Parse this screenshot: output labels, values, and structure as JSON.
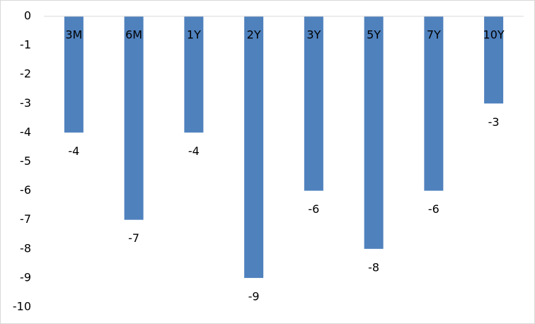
{
  "chart_data": {
    "type": "bar",
    "categories": [
      "3M",
      "6M",
      "1Y",
      "2Y",
      "3Y",
      "5Y",
      "7Y",
      "10Y"
    ],
    "values": [
      -4,
      -7,
      -4,
      -9,
      -6,
      -8,
      -6,
      -3
    ],
    "color": "#4f81bd",
    "ylim": [
      -10,
      0
    ],
    "yticks": [
      0,
      -1,
      -2,
      -3,
      -4,
      -5,
      -6,
      -7,
      -8,
      -9,
      -10
    ],
    "grid": false
  }
}
